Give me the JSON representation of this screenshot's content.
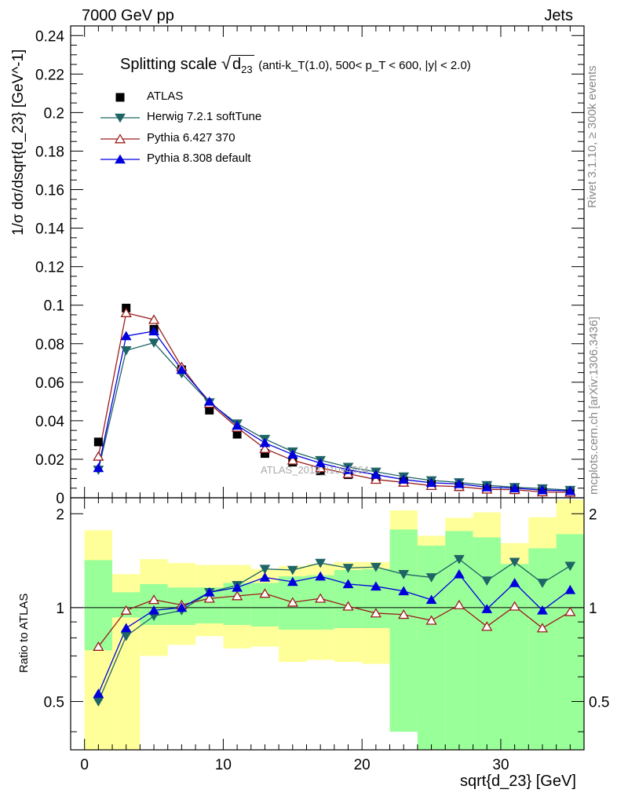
{
  "header": {
    "left": "7000 GeV pp",
    "right": "Jets"
  },
  "side_text": {
    "top": "Rivet 3.1.10, ≥ 300k events",
    "bottom": "mcplots.cern.ch [arXiv:1306.3436]"
  },
  "watermark": "ATLAS_2013_I1094564",
  "chart_data": {
    "type": "line",
    "title": "Splitting scale √d₂₃ (anti-kₜ(1.0), 500< pₜ < 600, |y| < 2.0)",
    "title_main": "Splitting scale",
    "title_sub": "(anti-k_T(1.0), 500< p_T < 600, |y| < 2.0)",
    "xlabel": "sqrt{d_23} [GeV]",
    "ylabel": "1/σ dσ/dsqrt{d_23} [GeV^-1]",
    "ratio_ylabel": "Ratio to ATLAS",
    "xlim": [
      -1,
      36
    ],
    "ylim": [
      0,
      0.245
    ],
    "ratio_ylim": [
      0.35,
      2.25
    ],
    "x_ticks": [
      0,
      10,
      20,
      30
    ],
    "y_ticks": [
      0,
      0.02,
      0.04,
      0.06,
      0.08,
      0.1,
      0.12,
      0.14,
      0.16,
      0.18,
      0.2,
      0.22,
      0.24
    ],
    "ratio_ticks": [
      0.5,
      1,
      2
    ],
    "bin_edges": [
      0,
      2,
      4,
      6,
      8,
      10,
      12,
      14,
      16,
      18,
      20,
      22,
      24,
      26,
      28,
      30,
      32,
      34,
      36
    ],
    "x": [
      1,
      3,
      5,
      7,
      9,
      11,
      13,
      15,
      17,
      19,
      21,
      23,
      25,
      27,
      29,
      31,
      33,
      35
    ],
    "series": [
      {
        "name": "ATLAS",
        "marker": "square",
        "color": "#000000",
        "values": [
          0.029,
          0.0985,
          0.0875,
          0.0665,
          0.0455,
          0.033,
          0.023,
          0.0185,
          0.014,
          0.012,
          0.01,
          0.0085,
          0.007,
          0.0058,
          0.005,
          0.0042,
          0.0035,
          0.0029
        ]
      },
      {
        "name": "Herwig 7.2.1 softTune",
        "marker": "triangle-down",
        "color": "#1f6466",
        "values": [
          0.0145,
          0.0765,
          0.0805,
          0.0645,
          0.0495,
          0.0385,
          0.0305,
          0.024,
          0.0195,
          0.016,
          0.0135,
          0.011,
          0.009,
          0.008,
          0.0065,
          0.0055,
          0.0048,
          0.004
        ],
        "ratio": [
          0.5,
          0.81,
          0.94,
          0.98,
          1.12,
          1.18,
          1.33,
          1.32,
          1.39,
          1.34,
          1.35,
          1.28,
          1.25,
          1.43,
          1.22,
          1.4,
          1.2,
          1.36
        ]
      },
      {
        "name": "Pythia 6.427 370",
        "marker": "triangle-open",
        "color": "#9b1c1c",
        "values": [
          0.0215,
          0.096,
          0.0925,
          0.068,
          0.049,
          0.0365,
          0.0255,
          0.0195,
          0.0155,
          0.0125,
          0.0095,
          0.008,
          0.0063,
          0.0058,
          0.0044,
          0.0042,
          0.003,
          0.0028
        ],
        "ratio": [
          0.75,
          0.98,
          1.06,
          1.02,
          1.07,
          1.09,
          1.11,
          1.04,
          1.07,
          1.01,
          0.96,
          0.95,
          0.91,
          1.02,
          0.87,
          1.01,
          0.86,
          0.97
        ]
      },
      {
        "name": "Pythia 8.308 default",
        "marker": "triangle-up",
        "color": "#0000dd",
        "values": [
          0.0155,
          0.084,
          0.0865,
          0.0665,
          0.05,
          0.0375,
          0.0285,
          0.0225,
          0.018,
          0.0145,
          0.012,
          0.0095,
          0.0078,
          0.0072,
          0.0055,
          0.005,
          0.004,
          0.0036
        ],
        "ratio": [
          0.53,
          0.86,
          0.98,
          1.0,
          1.12,
          1.16,
          1.25,
          1.21,
          1.26,
          1.19,
          1.17,
          1.13,
          1.06,
          1.28,
          0.99,
          1.2,
          0.98,
          1.14
        ]
      }
    ],
    "uncertainty_bands": {
      "inner_color": "#99ff99",
      "outer_color": "#ffff99",
      "inner_low": [
        0.73,
        0.93,
        0.88,
        0.88,
        0.89,
        0.88,
        0.87,
        0.85,
        0.85,
        0.86,
        0.86,
        0.4,
        0.35,
        0.35,
        0.35,
        0.35,
        0.35,
        0.35
      ],
      "inner_high": [
        1.42,
        1.12,
        1.19,
        1.16,
        1.16,
        1.2,
        1.2,
        1.26,
        1.27,
        1.32,
        1.33,
        1.78,
        1.58,
        1.76,
        1.68,
        1.38,
        1.55,
        1.72
      ],
      "outer_low": [
        0.35,
        0.35,
        0.7,
        0.76,
        0.81,
        0.74,
        0.75,
        0.67,
        0.68,
        0.67,
        0.66,
        0.46,
        0.78,
        0.67,
        0.54,
        0.84,
        0.54,
        0.35
      ],
      "outer_high": [
        1.77,
        1.28,
        1.43,
        1.39,
        1.37,
        1.37,
        1.33,
        1.36,
        1.38,
        1.4,
        1.4,
        2.05,
        1.7,
        1.94,
        2.02,
        1.61,
        1.95,
        2.22
      ]
    }
  }
}
